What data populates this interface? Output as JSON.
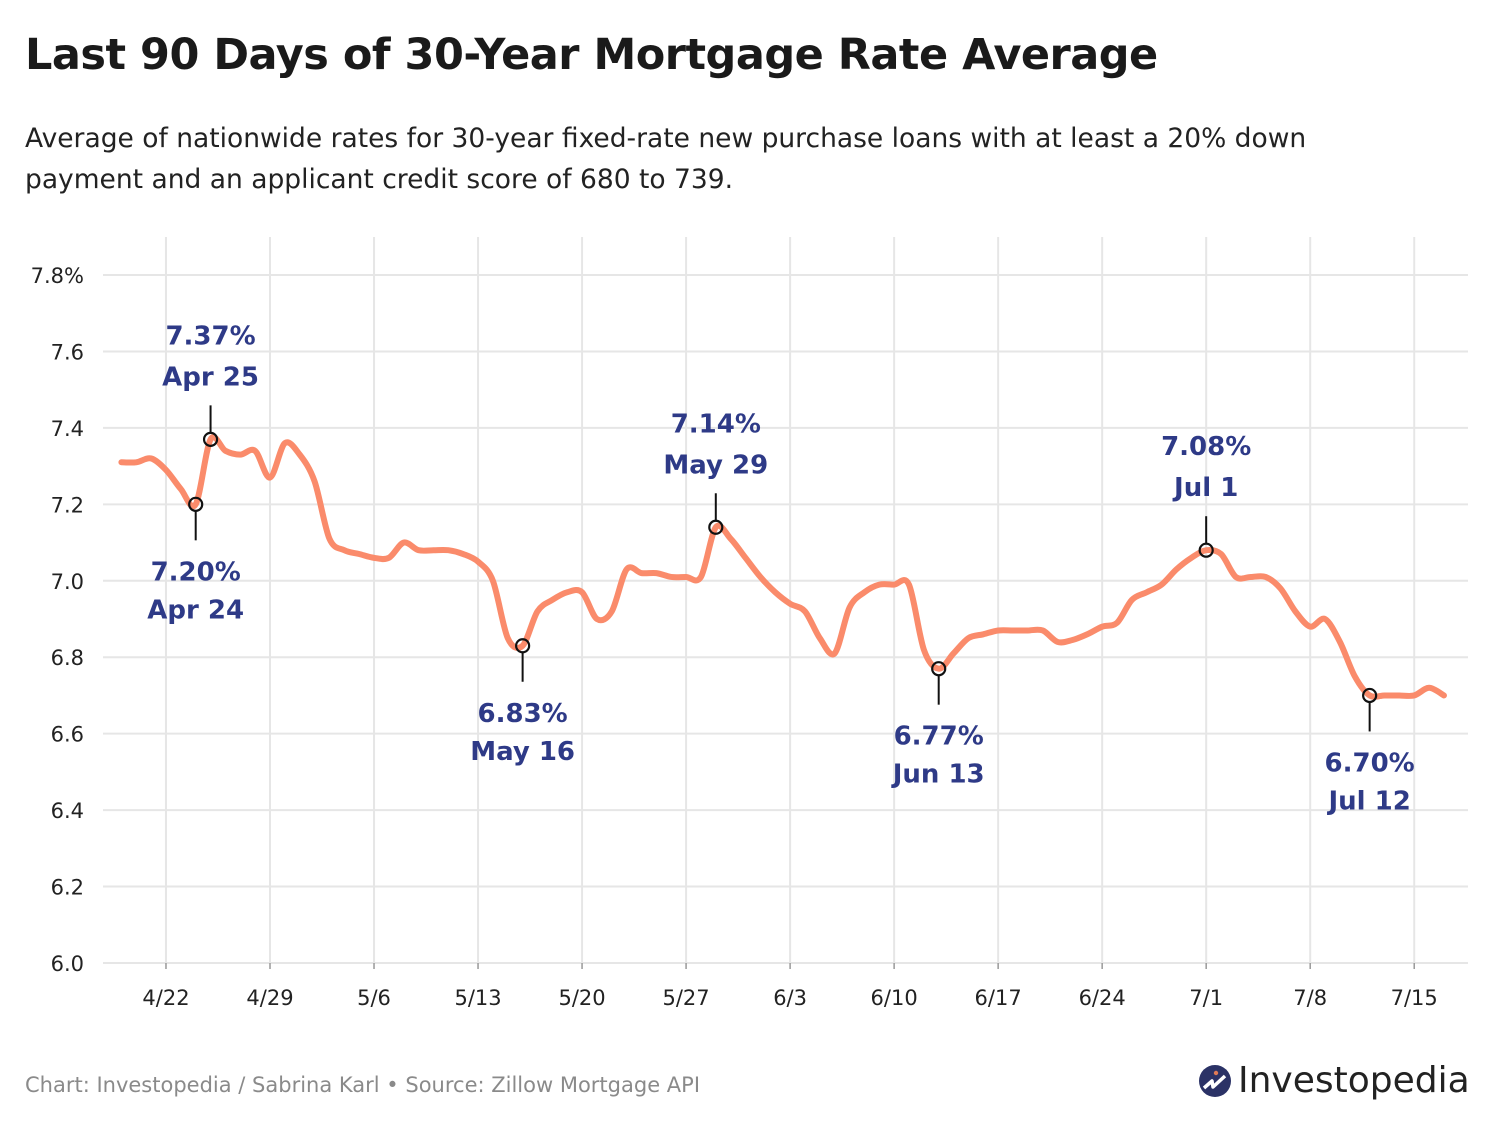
{
  "title": "Last 90 Days of 30-Year Mortgage Rate Average",
  "subtitle": "Average of nationwide rates for 30-year fixed-rate new purchase loans with at least a 20% down payment and an applicant credit score of 680 to 739.",
  "footer": "Chart: Investopedia / Sabrina Karl • Source: Zillow Mortgage API",
  "logo": "Investopedia",
  "colors": {
    "line": "#fa8b6b",
    "annotation": "#2e3a87",
    "grid": "#e6e6e6",
    "logo_dark": "#2b3266",
    "logo_accent": "#e07a55"
  },
  "chart_data": {
    "type": "line",
    "title": "Last 90 Days of 30-Year Mortgage Rate Average",
    "xlabel": "",
    "ylabel": "",
    "ylim": [
      6.0,
      7.8
    ],
    "yticks": [
      "6.0",
      "6.2",
      "6.4",
      "6.6",
      "6.8",
      "7.0",
      "7.2",
      "7.4",
      "7.6",
      "7.8%"
    ],
    "ytick_values": [
      6.0,
      6.2,
      6.4,
      6.6,
      6.8,
      7.0,
      7.2,
      7.4,
      7.6,
      7.8
    ],
    "xticks": [
      "4/22",
      "4/29",
      "5/6",
      "5/13",
      "5/20",
      "5/27",
      "6/3",
      "6/10",
      "6/17",
      "6/24",
      "7/1",
      "7/8",
      "7/15"
    ],
    "grid": true,
    "x": [
      "4/19",
      "4/20",
      "4/21",
      "4/22",
      "4/23",
      "4/24",
      "4/25",
      "4/26",
      "4/27",
      "4/28",
      "4/29",
      "4/30",
      "5/1",
      "5/2",
      "5/3",
      "5/4",
      "5/5",
      "5/6",
      "5/7",
      "5/8",
      "5/9",
      "5/10",
      "5/11",
      "5/12",
      "5/13",
      "5/14",
      "5/15",
      "5/16",
      "5/17",
      "5/18",
      "5/19",
      "5/20",
      "5/21",
      "5/22",
      "5/23",
      "5/24",
      "5/25",
      "5/26",
      "5/27",
      "5/28",
      "5/29",
      "5/30",
      "5/31",
      "6/1",
      "6/2",
      "6/3",
      "6/4",
      "6/5",
      "6/6",
      "6/7",
      "6/8",
      "6/9",
      "6/10",
      "6/11",
      "6/12",
      "6/13",
      "6/14",
      "6/15",
      "6/16",
      "6/17",
      "6/18",
      "6/19",
      "6/20",
      "6/21",
      "6/22",
      "6/23",
      "6/24",
      "6/25",
      "6/26",
      "6/27",
      "6/28",
      "6/29",
      "6/30",
      "7/1",
      "7/2",
      "7/3",
      "7/4",
      "7/5",
      "7/6",
      "7/7",
      "7/8",
      "7/9",
      "7/10",
      "7/11",
      "7/12",
      "7/13",
      "7/14",
      "7/15",
      "7/16",
      "7/17"
    ],
    "values": [
      7.31,
      7.31,
      7.32,
      7.29,
      7.24,
      7.2,
      7.37,
      7.34,
      7.33,
      7.34,
      7.27,
      7.36,
      7.33,
      7.26,
      7.11,
      7.08,
      7.07,
      7.06,
      7.06,
      7.1,
      7.08,
      7.08,
      7.08,
      7.07,
      7.05,
      7.0,
      6.85,
      6.83,
      6.92,
      6.95,
      6.97,
      6.97,
      6.9,
      6.92,
      7.03,
      7.02,
      7.02,
      7.01,
      7.01,
      7.01,
      7.14,
      7.11,
      7.06,
      7.01,
      6.97,
      6.94,
      6.92,
      6.85,
      6.81,
      6.93,
      6.97,
      6.99,
      6.99,
      6.99,
      6.82,
      6.77,
      6.81,
      6.85,
      6.86,
      6.87,
      6.87,
      6.87,
      6.87,
      6.84,
      6.845,
      6.86,
      6.88,
      6.89,
      6.95,
      6.97,
      6.99,
      7.03,
      7.06,
      7.08,
      7.07,
      7.01,
      7.01,
      7.01,
      6.98,
      6.92,
      6.88,
      6.9,
      6.84,
      6.75,
      6.7,
      6.7,
      6.7,
      6.7,
      6.72,
      6.7
    ],
    "annotations": [
      {
        "x": "4/24",
        "value": 7.2,
        "label": "7.20%",
        "date": "Apr 24",
        "placement": "below"
      },
      {
        "x": "4/25",
        "value": 7.37,
        "label": "7.37%",
        "date": "Apr 25",
        "placement": "above"
      },
      {
        "x": "5/16",
        "value": 6.83,
        "label": "6.83%",
        "date": "May 16",
        "placement": "below"
      },
      {
        "x": "5/29",
        "value": 7.14,
        "label": "7.14%",
        "date": "May 29",
        "placement": "above"
      },
      {
        "x": "6/13",
        "value": 6.77,
        "label": "6.77%",
        "date": "Jun 13",
        "placement": "below"
      },
      {
        "x": "7/1",
        "value": 7.08,
        "label": "7.08%",
        "date": "Jul 1",
        "placement": "above"
      },
      {
        "x": "7/12",
        "value": 6.7,
        "label": "6.70%",
        "date": "Jul 12",
        "placement": "below"
      }
    ]
  }
}
